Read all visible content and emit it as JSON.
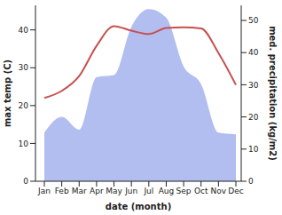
{
  "chart_data": {
    "type": "line",
    "x_label": "date (month)",
    "y_label": "max temp (C)",
    "y2_label": "med. precipitation (kg/m2)",
    "categories": [
      "Jan",
      "Feb",
      "Mar",
      "Apr",
      "May",
      "Jun",
      "Jul",
      "Aug",
      "Sep",
      "Oct",
      "Nov",
      "Dec"
    ],
    "ylim": [
      0,
      46.5
    ],
    "yticks": [
      0,
      10,
      20,
      30,
      40
    ],
    "y2lim": [
      0,
      54.7
    ],
    "y2ticks": [
      0,
      10,
      20,
      30,
      40,
      50
    ],
    "grid": false,
    "series": [
      {
        "name": "max temp",
        "type": "line",
        "color": "#c85050",
        "values": [
          22.0,
          23.9,
          27.8,
          35.8,
          41.0,
          39.8,
          38.9,
          40.5,
          40.7,
          40.4,
          33.9,
          25.5
        ]
      },
      {
        "name": "med. precipitation",
        "type": "area",
        "axis": "y2",
        "color": "#aab6ee",
        "values": [
          15.1,
          20.0,
          16.0,
          32.4,
          33.0,
          48.0,
          53.5,
          50.8,
          35.7,
          30.2,
          15.1,
          14.6
        ]
      }
    ]
  }
}
